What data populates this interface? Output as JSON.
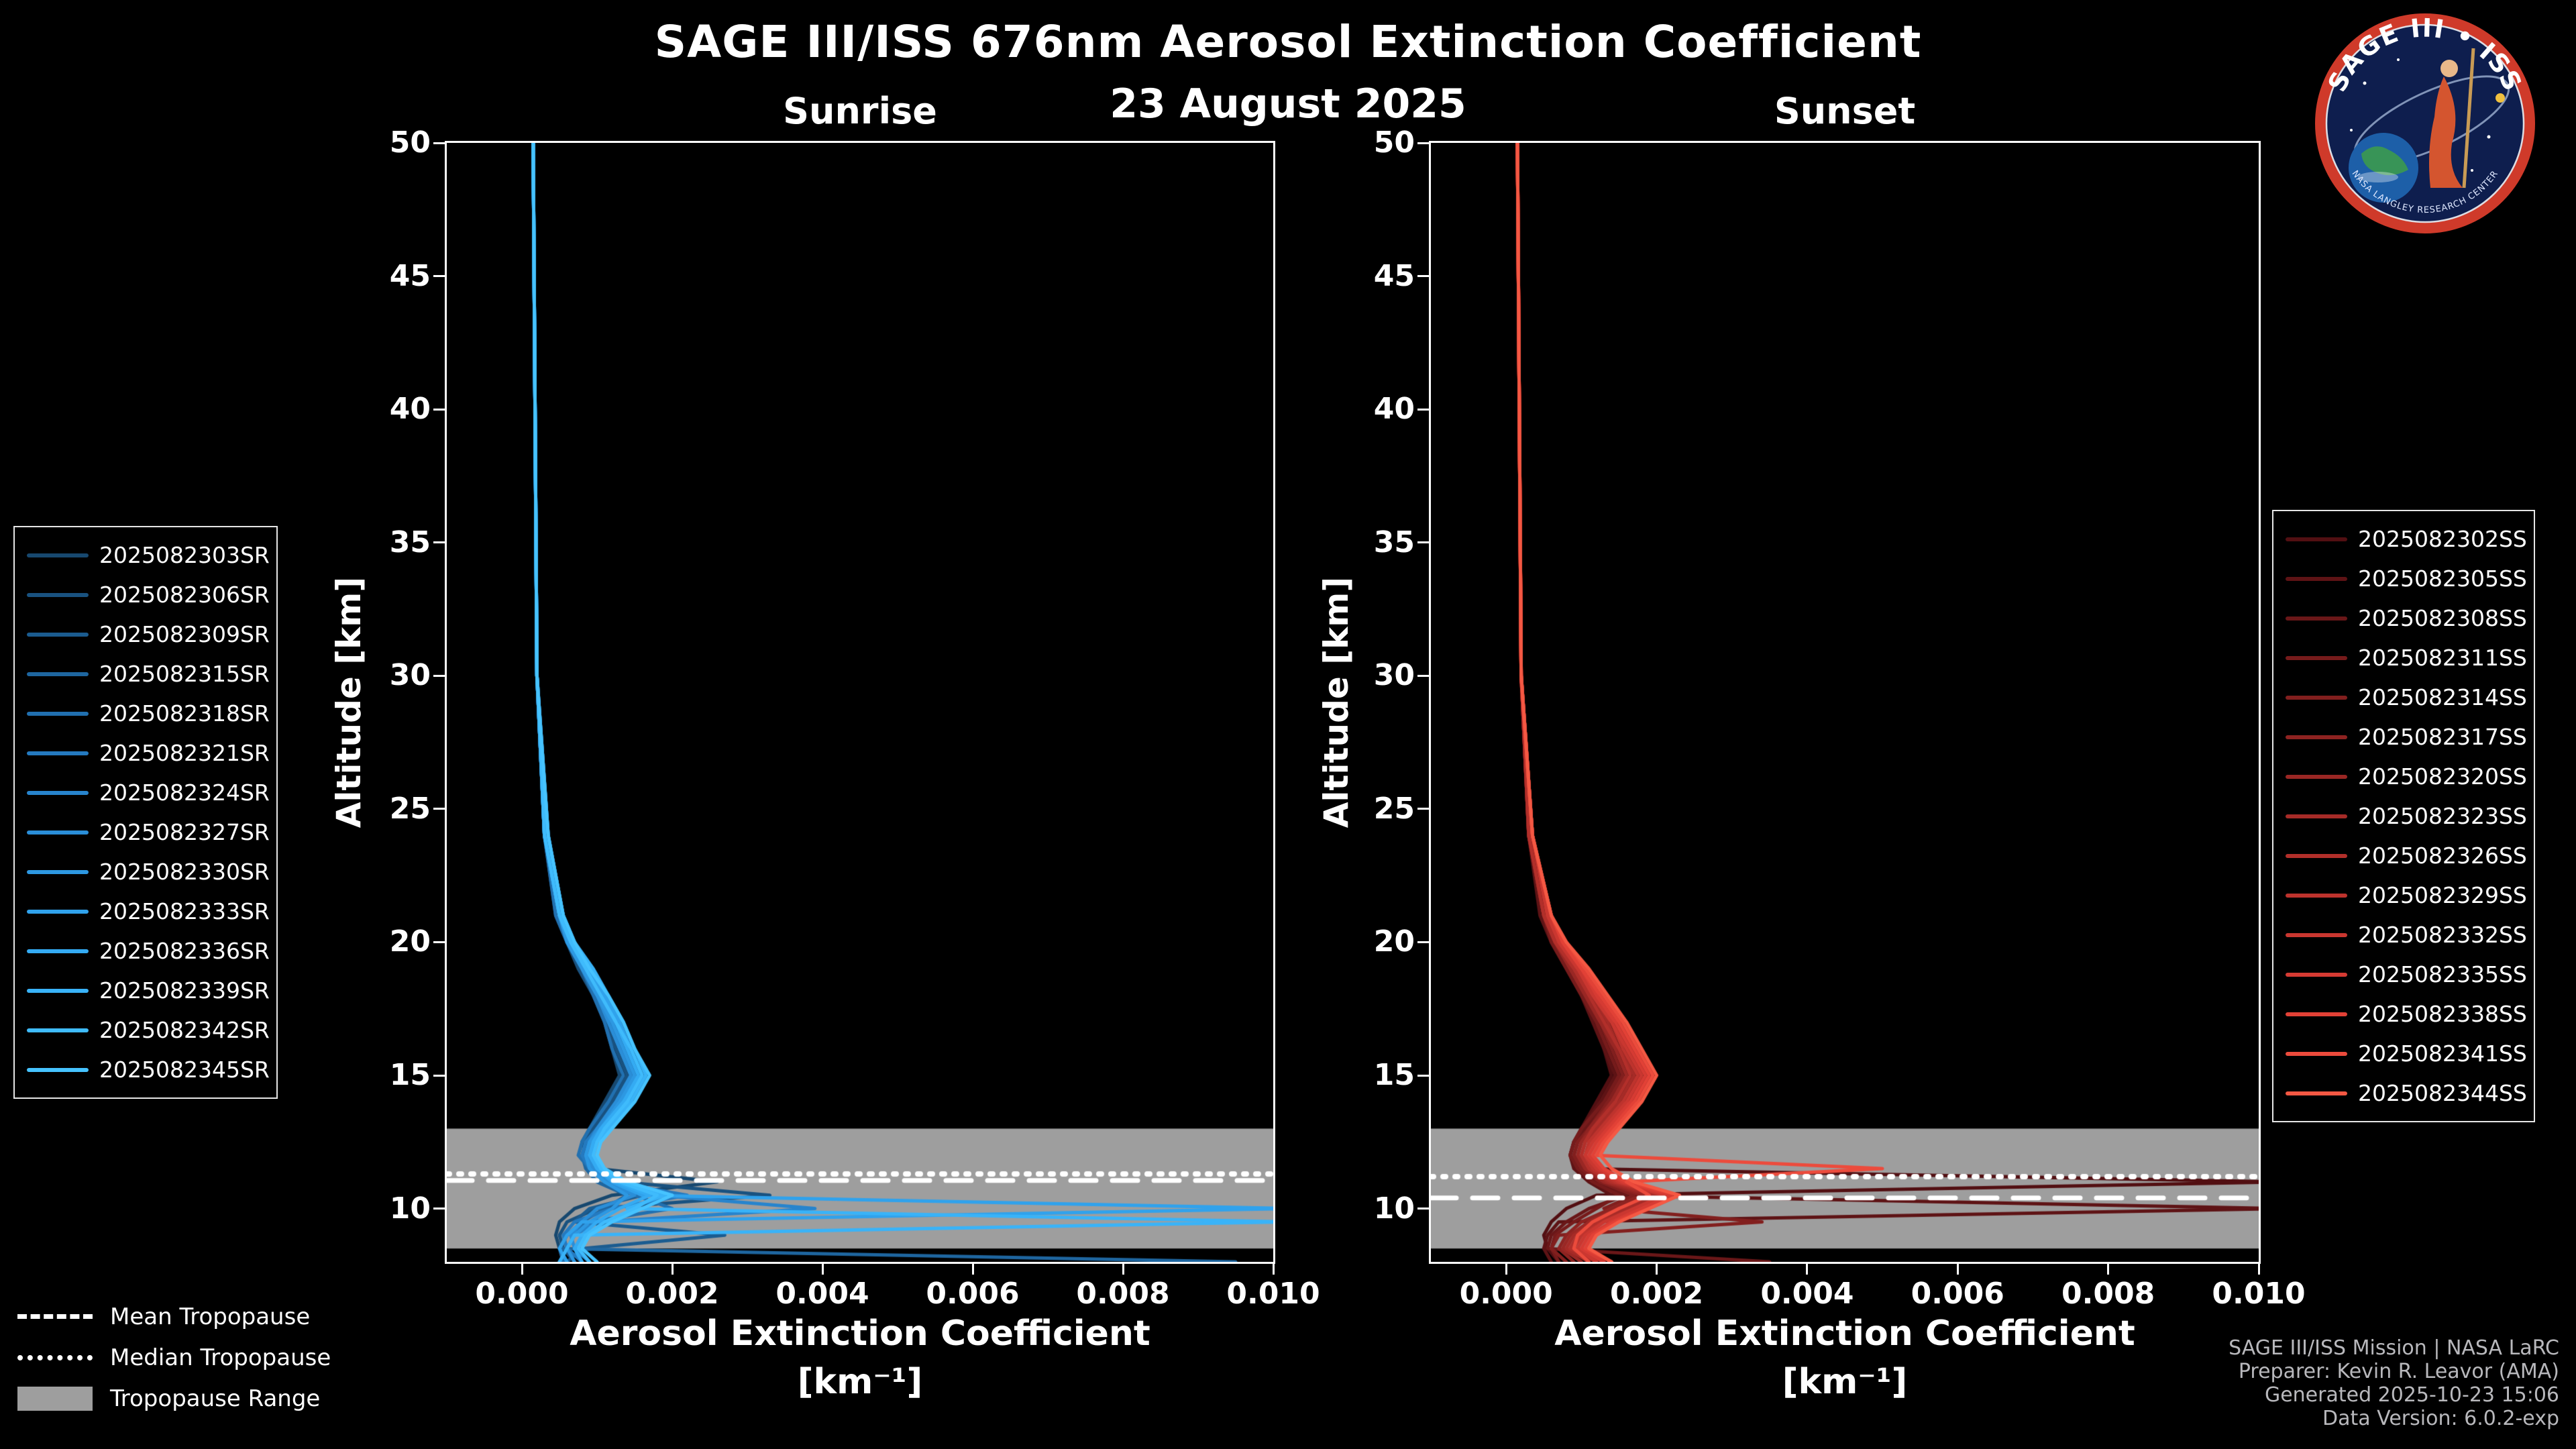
{
  "header": {
    "title": "SAGE III/ISS 676nm Aerosol Extinction Coefficient",
    "date": "23 August 2025"
  },
  "logo": {
    "title": "SAGE III • ISS",
    "bottom_text": "NASA LANGLEY RESEARCH CENTER"
  },
  "axis_labels": {
    "y": "Altitude [km]",
    "x_line1": "Aerosol Extinction Coefficient",
    "x_line2": "[km⁻¹]"
  },
  "tropopause_legend": {
    "mean": "Mean Tropopause",
    "median": "Median Tropopause",
    "range": "Tropopause Range"
  },
  "credits": {
    "line1": "SAGE III/ISS Mission | NASA LaRC",
    "line2": "Preparer: Kevin R. Leavor (AMA)",
    "line3": "Generated 2025-10-23 15:06",
    "line4": "Data Version: 6.0.2-exp"
  },
  "chart_data": [
    {
      "type": "line",
      "title": "Sunrise",
      "xlabel": "Aerosol Extinction Coefficient [km⁻¹]",
      "ylabel": "Altitude [km]",
      "xlim": [
        -0.001,
        0.01
      ],
      "ylim": [
        8,
        50
      ],
      "xticks": [
        0,
        0.002,
        0.004,
        0.006,
        0.008,
        0.01
      ],
      "xtick_labels": [
        "0.000",
        "0.002",
        "0.004",
        "0.006",
        "0.008",
        "0.010"
      ],
      "yticks": [
        10,
        15,
        20,
        25,
        30,
        35,
        40,
        45,
        50
      ],
      "grid": false,
      "legend_position": "outside-left",
      "value_units": "1e-3 km^-1",
      "altitudes_km": [
        50,
        30,
        24,
        21,
        20,
        19,
        18,
        17,
        16,
        15,
        14,
        13,
        12.5,
        12,
        11.5,
        11,
        10.5,
        10,
        9.5,
        9,
        8.5,
        8
      ],
      "tropopause": {
        "mean_km": 11.05,
        "median_km": 11.3,
        "range_km": [
          8.5,
          13.0
        ],
        "range_color": "#9e9e9e"
      },
      "series": [
        {
          "name": "2025082303SR",
          "color": "#17486f",
          "values": [
            0.15,
            0.2,
            0.3,
            0.5,
            0.6,
            0.8,
            1.0,
            1.1,
            1.2,
            1.3,
            1.1,
            0.9,
            0.8,
            0.85,
            1.0,
            2.6,
            1.2,
            0.7,
            0.5,
            0.45,
            0.5,
            0.6
          ]
        },
        {
          "name": "2025082306SR",
          "color": "#195280",
          "values": [
            0.15,
            0.2,
            0.3,
            0.45,
            0.6,
            0.75,
            0.95,
            1.1,
            1.25,
            1.4,
            1.2,
            0.95,
            0.85,
            0.8,
            0.9,
            1.3,
            3.3,
            1.0,
            0.6,
            0.5,
            0.55,
            0.7
          ]
        },
        {
          "name": "2025082309SR",
          "color": "#1b5c90",
          "values": [
            0.15,
            0.2,
            0.3,
            0.5,
            0.65,
            0.85,
            1.0,
            1.2,
            1.3,
            1.45,
            1.25,
            1.0,
            0.9,
            0.85,
            0.95,
            1.2,
            1.6,
            0.9,
            0.7,
            2.7,
            0.8,
            0.6
          ]
        },
        {
          "name": "2025082315SR",
          "color": "#1e66a0",
          "values": [
            0.15,
            0.2,
            0.3,
            0.5,
            0.6,
            0.8,
            1.0,
            1.15,
            1.3,
            1.5,
            1.3,
            1.05,
            0.9,
            0.8,
            0.85,
            1.0,
            1.4,
            1.1,
            0.8,
            0.6,
            0.5,
            9.5
          ]
        },
        {
          "name": "2025082318SR",
          "color": "#2170b0",
          "values": [
            0.15,
            0.2,
            0.3,
            0.45,
            0.6,
            0.8,
            0.95,
            1.1,
            1.2,
            1.35,
            1.15,
            0.9,
            0.8,
            0.75,
            0.9,
            1.1,
            1.5,
            2.0,
            0.9,
            0.6,
            0.5,
            0.55
          ]
        },
        {
          "name": "2025082321SR",
          "color": "#247ac0",
          "values": [
            0.15,
            0.2,
            0.3,
            0.5,
            0.65,
            0.85,
            1.05,
            1.2,
            1.35,
            1.5,
            1.3,
            1.0,
            0.85,
            0.8,
            0.9,
            1.2,
            2.2,
            1.2,
            0.7,
            0.55,
            0.6,
            0.8
          ]
        },
        {
          "name": "2025082324SR",
          "color": "#2784cd",
          "values": [
            0.15,
            0.2,
            0.35,
            0.55,
            0.7,
            0.9,
            1.1,
            1.25,
            1.4,
            1.55,
            1.35,
            1.05,
            0.95,
            0.9,
            1.0,
            1.3,
            1.8,
            3.9,
            1.0,
            0.7,
            0.6,
            0.5
          ]
        },
        {
          "name": "2025082327SR",
          "color": "#2a8ed8",
          "values": [
            0.15,
            0.2,
            0.3,
            0.5,
            0.65,
            0.8,
            1.0,
            1.15,
            1.3,
            1.45,
            1.25,
            1.0,
            0.9,
            0.85,
            0.95,
            1.15,
            1.5,
            1.0,
            0.8,
            0.65,
            0.7,
            0.9
          ]
        },
        {
          "name": "2025082330SR",
          "color": "#2d98e2",
          "values": [
            0.15,
            0.2,
            0.3,
            0.5,
            0.6,
            0.8,
            1.0,
            1.2,
            1.35,
            1.5,
            1.3,
            1.05,
            0.9,
            0.85,
            0.9,
            1.1,
            1.4,
            1.2,
            0.9,
            0.7,
            0.6,
            0.7
          ]
        },
        {
          "name": "2025082333SR",
          "color": "#30a2ec",
          "values": [
            0.15,
            0.2,
            0.35,
            0.55,
            0.7,
            0.9,
            1.1,
            1.3,
            1.45,
            1.6,
            1.4,
            1.1,
            1.0,
            0.9,
            1.0,
            1.2,
            1.6,
            10.2,
            0.8,
            0.6,
            0.5,
            0.6
          ]
        },
        {
          "name": "2025082336SR",
          "color": "#34abf3",
          "values": [
            0.15,
            0.2,
            0.3,
            0.5,
            0.65,
            0.85,
            1.05,
            1.25,
            1.4,
            1.55,
            1.35,
            1.05,
            0.95,
            0.9,
            1.0,
            1.25,
            1.7,
            1.3,
            1.0,
            0.8,
            0.7,
            0.8
          ]
        },
        {
          "name": "2025082339SR",
          "color": "#39b3f8",
          "values": [
            0.15,
            0.2,
            0.35,
            0.55,
            0.7,
            0.95,
            1.15,
            1.35,
            1.5,
            1.65,
            1.45,
            1.15,
            1.0,
            0.95,
            1.05,
            1.3,
            1.9,
            1.4,
            10.2,
            0.7,
            0.6,
            0.5
          ]
        },
        {
          "name": "2025082342SR",
          "color": "#3fbbfc",
          "values": [
            0.15,
            0.2,
            0.3,
            0.5,
            0.65,
            0.85,
            1.05,
            1.25,
            1.45,
            1.6,
            1.4,
            1.1,
            1.0,
            0.95,
            1.05,
            1.3,
            1.8,
            1.5,
            1.1,
            0.85,
            0.75,
            0.9
          ]
        },
        {
          "name": "2025082345SR",
          "color": "#46c3ff",
          "values": [
            0.15,
            0.2,
            0.35,
            0.55,
            0.7,
            0.9,
            1.15,
            1.35,
            1.5,
            1.7,
            1.5,
            1.2,
            1.05,
            1.0,
            1.1,
            1.4,
            2.0,
            1.6,
            1.2,
            0.9,
            0.8,
            1.0
          ]
        }
      ]
    },
    {
      "type": "line",
      "title": "Sunset",
      "xlabel": "Aerosol Extinction Coefficient [km⁻¹]",
      "ylabel": "Altitude [km]",
      "xlim": [
        -0.001,
        0.01
      ],
      "ylim": [
        8,
        50
      ],
      "xticks": [
        0,
        0.002,
        0.004,
        0.006,
        0.008,
        0.01
      ],
      "xtick_labels": [
        "0.000",
        "0.002",
        "0.004",
        "0.006",
        "0.008",
        "0.010"
      ],
      "yticks": [
        10,
        15,
        20,
        25,
        30,
        35,
        40,
        45,
        50
      ],
      "grid": false,
      "legend_position": "outside-right",
      "value_units": "1e-3 km^-1",
      "altitudes_km": [
        50,
        30,
        24,
        21,
        20,
        19,
        18,
        17,
        16,
        15,
        14,
        13,
        12.5,
        12,
        11.5,
        11,
        10.5,
        10,
        9.5,
        9,
        8.5,
        8
      ],
      "tropopause": {
        "mean_km": 10.4,
        "median_km": 11.2,
        "range_km": [
          8.5,
          13.0
        ],
        "range_color": "#9e9e9e"
      },
      "series": [
        {
          "name": "2025082302SS",
          "color": "#520f12",
          "values": [
            0.15,
            0.2,
            0.3,
            0.5,
            0.65,
            0.85,
            1.0,
            1.2,
            1.3,
            1.4,
            1.2,
            1.0,
            0.9,
            0.85,
            0.95,
            10.3,
            1.2,
            0.8,
            0.6,
            0.5,
            0.55,
            0.7
          ]
        },
        {
          "name": "2025082305SS",
          "color": "#5e1315",
          "values": [
            0.15,
            0.2,
            0.3,
            0.45,
            0.6,
            0.8,
            1.0,
            1.15,
            1.3,
            1.45,
            1.25,
            1.0,
            0.9,
            0.85,
            0.9,
            1.1,
            1.4,
            10.3,
            0.7,
            0.55,
            0.5,
            0.6
          ]
        },
        {
          "name": "2025082308SS",
          "color": "#6a1718",
          "values": [
            0.15,
            0.2,
            0.3,
            0.5,
            0.65,
            0.85,
            1.05,
            1.2,
            1.35,
            1.5,
            1.3,
            1.05,
            0.95,
            0.9,
            1.0,
            1.2,
            1.6,
            1.1,
            0.8,
            0.6,
            0.55,
            3.5
          ]
        },
        {
          "name": "2025082311SS",
          "color": "#761b1b",
          "values": [
            0.15,
            0.2,
            0.3,
            0.5,
            0.6,
            0.8,
            1.0,
            1.2,
            1.35,
            1.5,
            1.3,
            1.0,
            0.9,
            0.85,
            0.95,
            1.15,
            1.5,
            1.2,
            0.9,
            0.65,
            0.6,
            0.7
          ]
        },
        {
          "name": "2025082314SS",
          "color": "#821f1e",
          "values": [
            0.15,
            0.2,
            0.3,
            0.5,
            0.65,
            0.85,
            1.05,
            1.25,
            1.4,
            1.55,
            1.35,
            1.1,
            0.95,
            0.9,
            1.0,
            1.25,
            1.7,
            1.3,
            3.4,
            0.7,
            0.6,
            0.8
          ]
        },
        {
          "name": "2025082317SS",
          "color": "#8e2321",
          "values": [
            0.15,
            0.2,
            0.35,
            0.55,
            0.7,
            0.9,
            1.1,
            1.3,
            1.45,
            1.6,
            1.4,
            1.1,
            1.0,
            0.95,
            1.05,
            1.3,
            1.8,
            1.4,
            1.0,
            0.8,
            0.7,
            0.9
          ]
        },
        {
          "name": "2025082320SS",
          "color": "#9a2724",
          "values": [
            0.15,
            0.2,
            0.3,
            0.5,
            0.65,
            0.85,
            1.05,
            1.25,
            1.45,
            1.6,
            1.4,
            1.15,
            1.0,
            0.95,
            1.05,
            1.3,
            1.9,
            1.5,
            1.1,
            0.85,
            0.75,
            1.0
          ]
        },
        {
          "name": "2025082323SS",
          "color": "#a62b27",
          "values": [
            0.15,
            0.2,
            0.35,
            0.55,
            0.7,
            0.95,
            1.15,
            1.35,
            1.5,
            1.7,
            1.5,
            1.2,
            1.05,
            1.0,
            1.1,
            1.35,
            2.0,
            1.6,
            1.2,
            0.9,
            0.8,
            1.1
          ]
        },
        {
          "name": "2025082326SS",
          "color": "#b22f2a",
          "values": [
            0.15,
            0.2,
            0.3,
            0.5,
            0.65,
            0.9,
            1.1,
            1.3,
            1.5,
            1.65,
            1.45,
            1.15,
            1.05,
            1.0,
            1.1,
            1.4,
            2.1,
            1.7,
            1.25,
            0.95,
            0.85,
            1.2
          ]
        },
        {
          "name": "2025082329SS",
          "color": "#be332d",
          "values": [
            0.15,
            0.2,
            0.35,
            0.55,
            0.75,
            0.95,
            1.2,
            1.4,
            1.55,
            1.75,
            1.55,
            1.25,
            1.1,
            1.05,
            1.15,
            1.45,
            2.2,
            1.8,
            1.3,
            1.0,
            0.9,
            1.3
          ]
        },
        {
          "name": "2025082332SS",
          "color": "#ca3730",
          "values": [
            0.15,
            0.2,
            0.35,
            0.55,
            0.7,
            0.95,
            1.15,
            1.4,
            1.6,
            1.8,
            1.6,
            1.3,
            1.15,
            1.05,
            1.2,
            1.5,
            2.1,
            1.7,
            1.3,
            1.05,
            0.95,
            1.2
          ]
        },
        {
          "name": "2025082335SS",
          "color": "#d63b33",
          "values": [
            0.15,
            0.2,
            0.35,
            0.6,
            0.75,
            1.0,
            1.2,
            1.45,
            1.65,
            1.85,
            1.65,
            1.35,
            1.2,
            1.1,
            1.25,
            1.55,
            2.2,
            1.8,
            1.4,
            1.1,
            1.0,
            1.3
          ]
        },
        {
          "name": "2025082338SS",
          "color": "#e24136",
          "values": [
            0.15,
            0.2,
            0.35,
            0.6,
            0.75,
            1.0,
            1.25,
            1.5,
            1.7,
            1.9,
            1.7,
            1.4,
            1.25,
            1.15,
            1.3,
            1.6,
            2.3,
            1.9,
            1.45,
            1.15,
            1.05,
            1.4
          ]
        },
        {
          "name": "2025082341SS",
          "color": "#ec4b3c",
          "values": [
            0.15,
            0.2,
            0.35,
            0.6,
            0.8,
            1.05,
            1.3,
            1.55,
            1.75,
            1.95,
            1.75,
            1.45,
            1.3,
            1.2,
            5.0,
            1.6,
            1.9,
            1.5,
            1.15,
            0.95,
            0.9,
            1.1
          ]
        },
        {
          "name": "2025082344SS",
          "color": "#f55843",
          "values": [
            0.15,
            0.2,
            0.35,
            0.6,
            0.8,
            1.1,
            1.35,
            1.6,
            1.8,
            2.0,
            1.8,
            1.5,
            1.35,
            1.25,
            1.4,
            1.7,
            2.3,
            1.9,
            1.5,
            1.2,
            1.1,
            1.4
          ]
        }
      ]
    }
  ]
}
